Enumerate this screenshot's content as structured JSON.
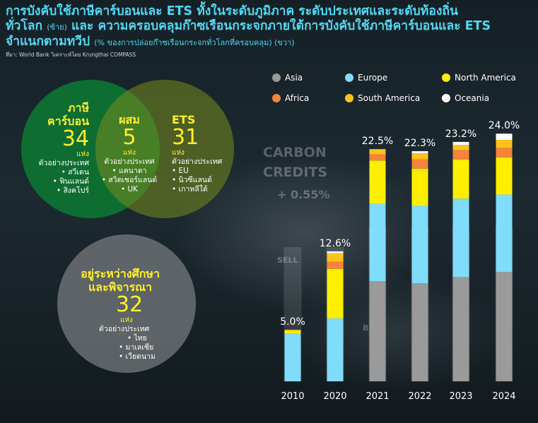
{
  "title": {
    "line1": "การบังคับใช้ภาษีคาร์บอนและ ETS ทั้งในระดับภูมิภาค ระดับประเทศและระดับท้องถิ่น",
    "line2_main": "ทั่วโลก",
    "line2_note": "(ซ้าย)",
    "line2_rest": "และ ความครอบคลุมก๊าซเรือนกระจกภายใต้การบังคับใช้ภาษีคาร์บอนและ ETS",
    "line3_main": "จำแนกตามทวีป",
    "line3_note": "(% ของการปล่อยก๊าซเรือนกระจกทั่วโลกที่ครอบคลุม) (ขวา)",
    "source": "ที่มา: World Bank วิเคราะห์โดย Krungthai COMPASS"
  },
  "venn": {
    "carbon_tax": {
      "label_1": "ภาษี",
      "label_2": "คาร์บอน",
      "count": "34",
      "unit": "แห่ง",
      "examples_title": "ตัวอย่างประเทศ",
      "examples": [
        "• สวีเดน",
        "• ฟินแลนด์",
        "• สิงคโปร์"
      ]
    },
    "mixed": {
      "label": "ผสม",
      "count": "5",
      "unit": "แห่ง",
      "examples_title": "ตัวอย่างประเทศ",
      "examples": [
        "• แคนาดา",
        "• สวิตเซอร์แลนด์",
        "• UK"
      ]
    },
    "ets": {
      "label": "ETS",
      "count": "31",
      "unit": "แห่ง",
      "examples_title": "ตัวอย่างประเทศ",
      "examples": [
        "• EU",
        "• นิวซีแลนด์",
        "• เกาหลีใต้"
      ]
    },
    "under_study": {
      "label_1": "อยู่ระหว่างศึกษา",
      "label_2": "และพิจารณา",
      "count": "32",
      "unit": "แห่ง",
      "examples_title": "ตัวอย่างประเทศ",
      "examples": [
        "• ไทย",
        "• มาเลเซีย",
        "• เวียดนาม"
      ]
    }
  },
  "background_text": {
    "carbon": "CARBON",
    "credits": "CREDITS",
    "change": "+ 0.55%",
    "sell": "SELL",
    "buy": "BUY"
  },
  "chart_data": {
    "type": "bar",
    "stacked": true,
    "categories": [
      "2010",
      "2020",
      "2021",
      "2022",
      "2023",
      "2024"
    ],
    "totals_labels": [
      "5.0%",
      "12.6%",
      "22.5%",
      "22.3%",
      "23.2%",
      "24.0%"
    ],
    "totals": [
      5.0,
      12.6,
      22.5,
      22.3,
      23.2,
      24.0
    ],
    "series": [
      {
        "name": "Asia",
        "color": "#9a9a9a",
        "values": [
          0.0,
          0.0,
          9.7,
          9.5,
          10.1,
          10.6
        ]
      },
      {
        "name": "Europe",
        "color": "#7fdcfb",
        "values": [
          4.6,
          6.1,
          7.5,
          7.5,
          7.6,
          7.5
        ]
      },
      {
        "name": "North America",
        "color": "#ffee00",
        "values": [
          0.3,
          4.8,
          4.2,
          3.6,
          3.8,
          3.6
        ]
      },
      {
        "name": "Africa",
        "color": "#f5843a",
        "values": [
          0.0,
          0.7,
          0.6,
          0.9,
          0.9,
          0.9
        ]
      },
      {
        "name": "South America",
        "color": "#ffc21a",
        "values": [
          0.1,
          0.8,
          0.5,
          0.6,
          0.5,
          0.8
        ]
      },
      {
        "name": "Oceania",
        "color": "#ffffff",
        "values": [
          0.0,
          0.2,
          0.0,
          0.2,
          0.3,
          0.6
        ]
      }
    ],
    "ylim": [
      0,
      26
    ],
    "grid": false,
    "legend_position": "top",
    "legend_columns": 3
  }
}
